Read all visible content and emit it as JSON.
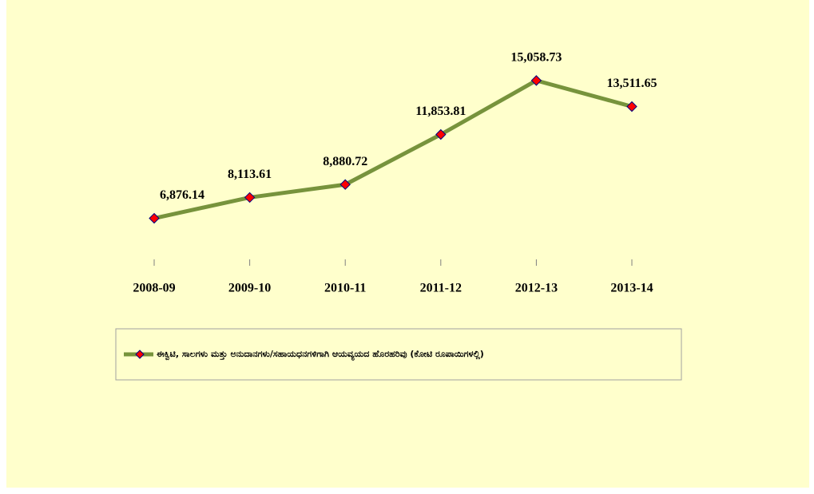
{
  "chart_data": {
    "type": "line",
    "categories": [
      "2008-09",
      "2009-10",
      "2010-11",
      "2011-12",
      "2012-13",
      "2013-14"
    ],
    "series": [
      {
        "name": "ಈಕ್ವಿಟಿ, ಸಾಲಗಳು ಮತ್ತು ಅನುದಾನಗಳು/ಸಹಾಯಧನಗಳಿಗಾಗಿ ಆಯವ್ಯಯದ ಹೊರಹರಿವು (ಕೋಟಿ ರೂಪಾಯಿಗಳಲ್ಲಿ)",
        "color": "#77933c",
        "marker_color": "#ff0000",
        "values": [
          6876.14,
          8113.61,
          8880.72,
          11853.81,
          15058.73,
          13511.65
        ],
        "value_labels": [
          "6,876.14",
          "8,113.61",
          "8,880.72",
          "11,853.81",
          "15,058.73",
          "13,511.65"
        ]
      }
    ],
    "ylim": [
      4200,
      16000
    ],
    "legend": "bottom"
  }
}
